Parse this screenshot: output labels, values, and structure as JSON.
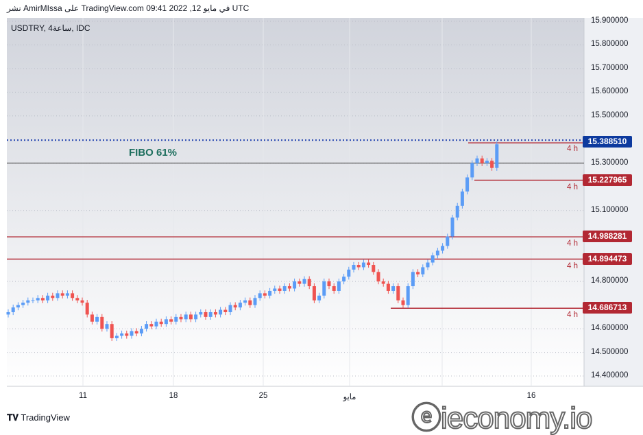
{
  "header": "نشر AmirMIssa على TradingView.com 09:41 2022 ,12 في مايو UTC",
  "symbol": "USDTRY, 4ساعة, IDC",
  "annotation": "FIBO 61%",
  "price_axis": [
    "15.900000",
    "15.800000",
    "15.700000",
    "15.600000",
    "15.500000",
    "15.300000",
    "15.100000",
    "14.800000",
    "14.600000",
    "14.500000",
    "14.400000"
  ],
  "price_axis_values": [
    15.9,
    15.8,
    15.7,
    15.6,
    15.5,
    15.3,
    15.1,
    14.8,
    14.6,
    14.5,
    14.4
  ],
  "levels": [
    {
      "value": 15.38851,
      "label": "15.388510",
      "color": "#0d3a9e",
      "tf": "4 h"
    },
    {
      "value": 15.227965,
      "label": "15.227965",
      "color": "#b22833",
      "tf": "4 h"
    },
    {
      "value": 14.988281,
      "label": "14.988281",
      "color": "#b22833",
      "tf": "4 h"
    },
    {
      "value": 14.894473,
      "label": "14.894473",
      "color": "#b22833",
      "tf": "4 h"
    },
    {
      "value": 14.686713,
      "label": "14.686713",
      "color": "#b22833",
      "tf": "4 h"
    }
  ],
  "fibo_value": 15.3,
  "date_axis": [
    "11",
    "18",
    "25",
    "مايو",
    "16"
  ],
  "brand": "TradingView",
  "watermark": "ieconomy.io",
  "colors": {
    "up": "#5b9cf6",
    "down": "#ef5350"
  },
  "closes": [
    14.67,
    14.69,
    14.7,
    14.71,
    14.72,
    14.72,
    14.73,
    14.72,
    14.74,
    14.73,
    14.75,
    14.74,
    14.75,
    14.73,
    14.72,
    14.71,
    14.66,
    14.63,
    14.65,
    14.6,
    14.62,
    14.56,
    14.57,
    14.58,
    14.57,
    14.59,
    14.58,
    14.6,
    14.62,
    14.61,
    14.63,
    14.62,
    14.64,
    14.63,
    14.65,
    14.64,
    14.66,
    14.64,
    14.66,
    14.67,
    14.65,
    14.67,
    14.66,
    14.68,
    14.67,
    14.7,
    14.69,
    14.71,
    14.72,
    14.7,
    14.73,
    14.75,
    14.74,
    14.76,
    14.77,
    14.76,
    14.78,
    14.77,
    14.8,
    14.79,
    14.81,
    14.78,
    14.72,
    14.74,
    14.8,
    14.78,
    14.76,
    14.8,
    14.82,
    14.85,
    14.87,
    14.86,
    14.88,
    14.87,
    14.84,
    14.8,
    14.79,
    14.76,
    14.78,
    14.72,
    14.7,
    14.78,
    14.84,
    14.83,
    14.86,
    14.88,
    14.91,
    14.93,
    14.95,
    14.99,
    15.07,
    15.12,
    15.18,
    15.24,
    15.3,
    15.32,
    15.3,
    15.31,
    15.28,
    15.38
  ]
}
